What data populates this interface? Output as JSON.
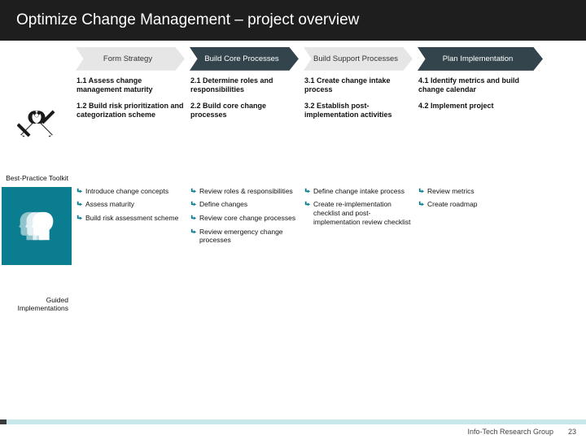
{
  "colors": {
    "title_bg": "#1e1e1e",
    "title_fg": "#ffffff",
    "phase_light_fill": "#e6e6e6",
    "phase_dark_fill": "#33444c",
    "teal": "#0b7d91",
    "marker_color": "#0b7d91",
    "footer_bar": "#c7e7ea",
    "footer_bar_accent": "#3a3a3a"
  },
  "title": "Optimize Change Management – project overview",
  "phases": [
    {
      "label": "Form Strategy",
      "style": "light"
    },
    {
      "label": "Build Core Processes",
      "style": "dark"
    },
    {
      "label": "Build Support Processes",
      "style": "light"
    },
    {
      "label": "Plan Implementation",
      "style": "dark"
    }
  ],
  "activities": {
    "row1": [
      "1.1 Assess change management maturity",
      "2.1 Determine roles and responsibilities",
      "3.1 Create change intake process",
      "4.1 Identify metrics and build change calendar"
    ],
    "row2": [
      "1.2 Build risk prioritization and categorization scheme",
      "2.2 Build core change processes",
      "3.2 Establish post-implementation activities",
      "4.2 Implement project"
    ]
  },
  "row_labels": {
    "toolkit": "Best-Practice Toolkit",
    "guided": "Guided Implementations"
  },
  "toolkit": [
    [
      "Introduce change concepts",
      "Assess maturity",
      "Build risk assessment scheme"
    ],
    [
      "Review roles & responsibilities",
      "Define changes",
      "Review core change processes",
      "Review emergency change processes"
    ],
    [
      "Define change intake process",
      "Create re-implementation checklist and post-implementation review checklist"
    ],
    [
      "Review metrics",
      "Create roadmap"
    ]
  ],
  "footer": {
    "org": "Info-Tech Research Group",
    "page": "23"
  }
}
